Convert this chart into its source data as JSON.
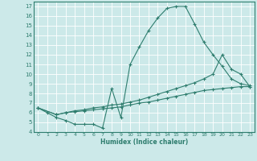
{
  "xlabel": "Humidex (Indice chaleur)",
  "bg_color": "#cce9e9",
  "grid_color": "#ffffff",
  "line_color": "#2e7d6e",
  "xlim": [
    -0.5,
    23.5
  ],
  "ylim": [
    4,
    17.5
  ],
  "xticks": [
    0,
    1,
    2,
    3,
    4,
    5,
    6,
    7,
    8,
    9,
    10,
    11,
    12,
    13,
    14,
    15,
    16,
    17,
    18,
    19,
    20,
    21,
    22,
    23
  ],
  "yticks": [
    4,
    5,
    6,
    7,
    8,
    9,
    10,
    11,
    12,
    13,
    14,
    15,
    16,
    17
  ],
  "curve1_x": [
    0,
    1,
    2,
    3,
    4,
    5,
    6,
    7,
    8,
    9,
    10,
    11,
    12,
    13,
    14,
    15,
    16,
    17,
    18,
    19,
    20,
    21,
    22,
    23
  ],
  "curve1_y": [
    6.5,
    6.0,
    5.5,
    5.2,
    4.8,
    4.8,
    4.8,
    4.4,
    8.5,
    5.5,
    11.0,
    12.8,
    14.5,
    15.8,
    16.8,
    17.0,
    17.0,
    15.2,
    13.3,
    12.0,
    10.8,
    9.5,
    9.0,
    8.8
  ],
  "curve2_x": [
    0,
    2,
    3,
    4,
    5,
    6,
    7,
    8,
    9,
    10,
    11,
    12,
    13,
    14,
    15,
    16,
    17,
    18,
    19,
    20,
    21,
    22,
    23
  ],
  "curve2_y": [
    6.5,
    5.8,
    6.0,
    6.2,
    6.3,
    6.5,
    6.6,
    6.8,
    6.9,
    7.1,
    7.3,
    7.6,
    7.9,
    8.2,
    8.5,
    8.8,
    9.1,
    9.5,
    10.0,
    12.0,
    10.5,
    10.0,
    8.7
  ],
  "curve3_x": [
    0,
    2,
    3,
    4,
    5,
    6,
    7,
    8,
    9,
    10,
    11,
    12,
    13,
    14,
    15,
    16,
    17,
    18,
    19,
    20,
    21,
    22,
    23
  ],
  "curve3_y": [
    6.5,
    5.8,
    6.0,
    6.1,
    6.2,
    6.3,
    6.4,
    6.5,
    6.6,
    6.8,
    7.0,
    7.1,
    7.3,
    7.5,
    7.7,
    7.9,
    8.1,
    8.3,
    8.4,
    8.5,
    8.6,
    8.7,
    8.7
  ]
}
